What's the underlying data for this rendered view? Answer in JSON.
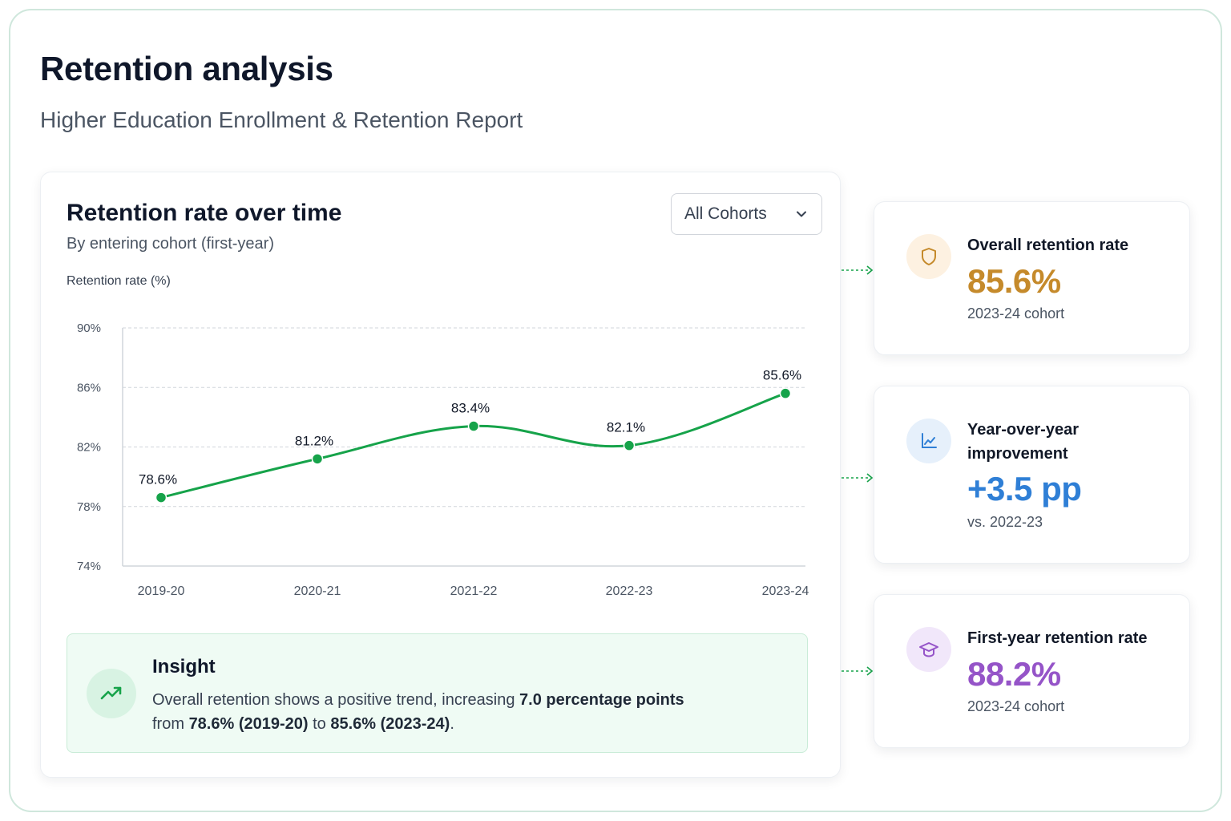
{
  "header": {
    "title": "Retention analysis",
    "subtitle": "Higher Education Enrollment & Retention Report"
  },
  "chart_card": {
    "title": "Retention rate over time",
    "subtitle": "By entering cohort (first-year)",
    "axis_caption": "Retention rate (%)",
    "dropdown": {
      "selected": "All Cohorts",
      "icon": "chevron-down-icon"
    }
  },
  "chart_data": {
    "type": "line",
    "title": "Retention rate over time",
    "subtitle": "By entering cohort (first-year)",
    "ylabel": "Retention rate (%)",
    "xlabel": "",
    "categories": [
      "2019-20",
      "2020-21",
      "2021-22",
      "2022-23",
      "2023-24"
    ],
    "series": [
      {
        "values": [
          78.6,
          81.2,
          83.4,
          82.1,
          85.6
        ],
        "color": "#16a34a"
      }
    ],
    "data_labels": [
      "78.6%",
      "81.2%",
      "83.4%",
      "82.1%",
      "85.6%"
    ],
    "y_ticks": [
      90,
      86,
      82,
      78,
      74
    ],
    "y_tick_labels": [
      "90%",
      "86%",
      "82%",
      "78%",
      "74%"
    ],
    "ylim": [
      74,
      90
    ],
    "grid": true,
    "legend": false
  },
  "insight": {
    "title": "Insight",
    "text_1": "Overall retention shows a positive trend, increasing ",
    "bold_1": "7.0 percentage points",
    "text_2": "from ",
    "bold_2": "78.6% (2019-20)",
    "text_3": " to ",
    "bold_3": "85.6% (2023-24)",
    "text_4": ".",
    "icon": "trending-up-icon"
  },
  "kpis": [
    {
      "label": "Overall retention rate",
      "value": "85.6%",
      "note": "2023-24 cohort",
      "icon": "shield-icon",
      "color": "#c58a2b",
      "icon_bg": "#fdf1e1"
    },
    {
      "label": "Year-over-year improvement",
      "value": "+3.5 pp",
      "note": "vs. 2022-23",
      "icon": "chart-line-icon",
      "color": "#2f7fd6",
      "icon_bg": "#e6f0fb"
    },
    {
      "label": "First-year retention rate",
      "value": "88.2%",
      "note": "2023-24 cohort",
      "icon": "graduation-cap-icon",
      "color": "#9554c8",
      "icon_bg": "#f1e7fa"
    }
  ],
  "colors": {
    "accent_green": "#16a34a",
    "frame_border": "#cfe7dc",
    "insight_bg": "#effbf4"
  }
}
